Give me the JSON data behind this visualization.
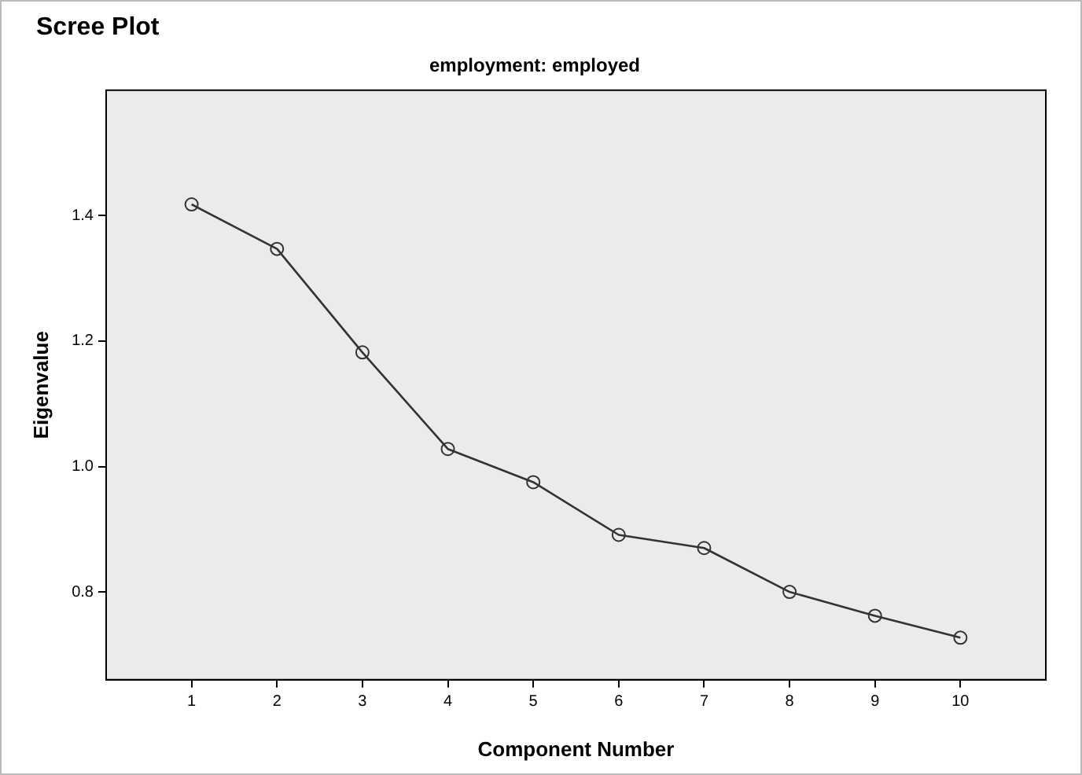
{
  "chart_data": {
    "type": "line",
    "title": "Scree Plot",
    "subtitle": "employment: employed",
    "xlabel": "Component Number",
    "ylabel": "Eigenvalue",
    "x": [
      1,
      2,
      3,
      4,
      5,
      6,
      7,
      8,
      9,
      10
    ],
    "series": [
      {
        "color": "#333333",
        "values": [
          1.418,
          1.347,
          1.182,
          1.028,
          0.975,
          0.891,
          0.87,
          0.8,
          0.762,
          0.727
        ]
      }
    ],
    "xlim": [
      0,
      11
    ],
    "xticks": [
      1,
      2,
      3,
      4,
      5,
      6,
      7,
      8,
      9,
      10
    ],
    "ylim": [
      0.66,
      1.6
    ],
    "yticks": [
      0.8,
      {
        "value": 1,
        "label": "1.0"
      },
      1.2,
      1.4
    ],
    "grid": false,
    "legend": false,
    "marker": "circle",
    "line_style": "solid"
  }
}
